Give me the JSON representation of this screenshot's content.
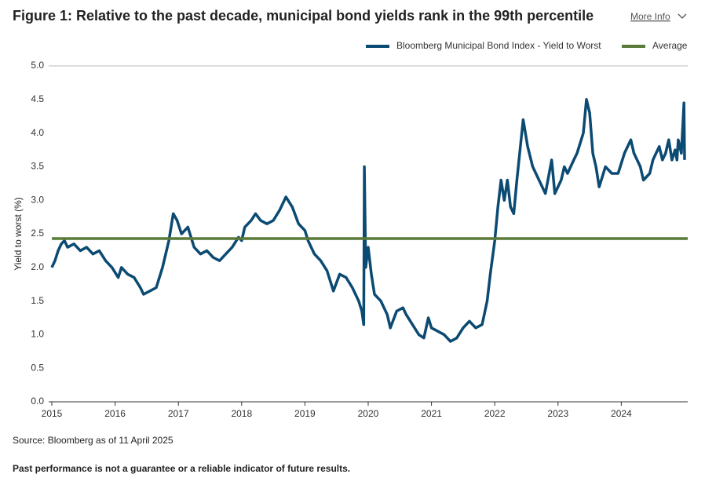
{
  "chart_data": {
    "type": "line",
    "title": "Figure 1: Relative to the past decade, municipal bond yields rank in the 99th percentile",
    "more_info": "More Info",
    "ylabel": "Yield to worst (%)",
    "source": "Source: Bloomberg as of 11 April 2025",
    "disclaimer": "Past performance is not a guarantee or a reliable indicator of future results.",
    "xlim": [
      2015,
      2025.05
    ],
    "xticks": [
      2015,
      2016,
      2017,
      2018,
      2019,
      2020,
      2021,
      2022,
      2023,
      2024
    ],
    "ylim": [
      0,
      5
    ],
    "yticks": [
      {
        "value": 0,
        "label": "0.0"
      },
      {
        "value": 0.5,
        "label": "0.5"
      },
      {
        "value": 1,
        "label": "1.0"
      },
      {
        "value": 1.5,
        "label": "1.5"
      },
      {
        "value": 2,
        "label": "2.0"
      },
      {
        "value": 2.5,
        "label": "2.5"
      },
      {
        "value": 3,
        "label": "3.0"
      },
      {
        "value": 3.5,
        "label": "3.5"
      },
      {
        "value": 4,
        "label": "4.0"
      },
      {
        "value": 4.5,
        "label": "4.5"
      },
      {
        "value": 5,
        "label": "5.0"
      }
    ],
    "x": [
      2015.0,
      2015.05,
      2015.1,
      2015.15,
      2015.2,
      2015.25,
      2015.35,
      2015.45,
      2015.55,
      2015.65,
      2015.75,
      2015.85,
      2015.95,
      2016.05,
      2016.1,
      2016.2,
      2016.3,
      2016.4,
      2016.45,
      2016.55,
      2016.65,
      2016.75,
      2016.85,
      2016.92,
      2016.98,
      2017.05,
      2017.15,
      2017.2,
      2017.25,
      2017.35,
      2017.45,
      2017.55,
      2017.65,
      2017.75,
      2017.85,
      2017.95,
      2018.0,
      2018.05,
      2018.15,
      2018.22,
      2018.3,
      2018.4,
      2018.5,
      2018.6,
      2018.7,
      2018.8,
      2018.9,
      2019.0,
      2019.05,
      2019.15,
      2019.25,
      2019.35,
      2019.45,
      2019.55,
      2019.65,
      2019.75,
      2019.85,
      2019.9,
      2019.93,
      2019.94,
      2019.96,
      2020.0,
      2020.05,
      2020.1,
      2020.2,
      2020.3,
      2020.35,
      2020.45,
      2020.55,
      2020.6,
      2020.7,
      2020.8,
      2020.88,
      2020.95,
      2021.0,
      2021.1,
      2021.2,
      2021.3,
      2021.4,
      2021.5,
      2021.6,
      2021.7,
      2021.8,
      2021.88,
      2021.93,
      2022.0,
      2022.05,
      2022.1,
      2022.15,
      2022.2,
      2022.25,
      2022.3,
      2022.35,
      2022.45,
      2022.52,
      2022.6,
      2022.7,
      2022.8,
      2022.9,
      2022.95,
      2023.05,
      2023.1,
      2023.15,
      2023.25,
      2023.3,
      2023.4,
      2023.45,
      2023.5,
      2023.55,
      2023.6,
      2023.65,
      2023.75,
      2023.85,
      2023.95,
      2024.05,
      2024.15,
      2024.2,
      2024.3,
      2024.35,
      2024.45,
      2024.5,
      2024.6,
      2024.65,
      2024.7,
      2024.75,
      2024.8,
      2024.85,
      2024.88,
      2024.9,
      2024.95,
      2024.99,
      2025.0
    ],
    "series": [
      {
        "name": "Bloomberg Municipal Bond Index - Yield to Worst",
        "color": "#0b4a72",
        "values": [
          2.0,
          2.1,
          2.25,
          2.35,
          2.4,
          2.3,
          2.35,
          2.25,
          2.3,
          2.2,
          2.25,
          2.1,
          2.0,
          1.85,
          2.0,
          1.9,
          1.85,
          1.7,
          1.6,
          1.65,
          1.7,
          2.0,
          2.4,
          2.8,
          2.7,
          2.5,
          2.6,
          2.45,
          2.3,
          2.2,
          2.25,
          2.15,
          2.1,
          2.2,
          2.3,
          2.45,
          2.4,
          2.6,
          2.7,
          2.8,
          2.7,
          2.65,
          2.7,
          2.85,
          3.05,
          2.9,
          2.65,
          2.55,
          2.4,
          2.2,
          2.1,
          1.95,
          1.65,
          1.9,
          1.85,
          1.7,
          1.5,
          1.35,
          1.15,
          3.5,
          2.0,
          2.3,
          1.9,
          1.6,
          1.5,
          1.3,
          1.1,
          1.35,
          1.4,
          1.3,
          1.15,
          1.0,
          0.95,
          1.25,
          1.1,
          1.05,
          1.0,
          0.9,
          0.95,
          1.1,
          1.2,
          1.1,
          1.15,
          1.5,
          1.9,
          2.4,
          2.9,
          3.3,
          3.0,
          3.3,
          2.9,
          2.8,
          3.3,
          4.2,
          3.8,
          3.5,
          3.3,
          3.1,
          3.6,
          3.1,
          3.3,
          3.5,
          3.4,
          3.6,
          3.7,
          4.0,
          4.5,
          4.3,
          3.7,
          3.5,
          3.2,
          3.5,
          3.4,
          3.4,
          3.7,
          3.9,
          3.7,
          3.5,
          3.3,
          3.4,
          3.6,
          3.8,
          3.6,
          3.7,
          3.9,
          3.6,
          3.75,
          3.6,
          3.9,
          3.7,
          4.45,
          3.6
        ]
      },
      {
        "name": "Average",
        "color": "#5a7a3a",
        "value": 2.43
      }
    ]
  }
}
